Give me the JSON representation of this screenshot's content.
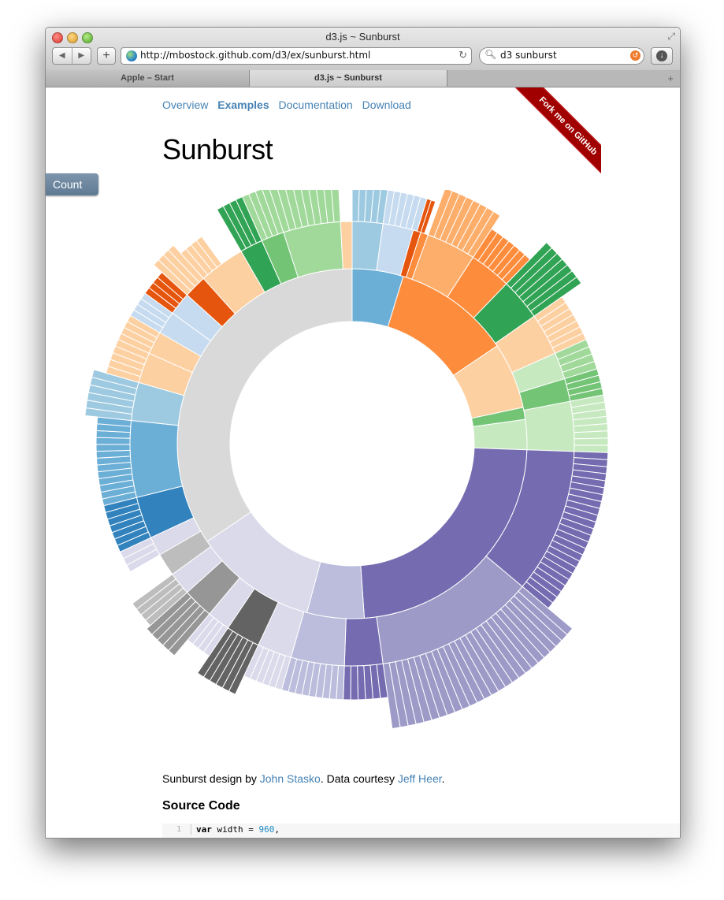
{
  "window": {
    "title": "d3.js ~ Sunburst",
    "url": "http://mbostock.github.com/d3/ex/sunburst.html",
    "search": "d3 sunburst",
    "tabs": [
      {
        "label": "Apple – Start"
      },
      {
        "label": "d3.js ~ Sunburst"
      }
    ]
  },
  "nav": {
    "items": [
      {
        "label": "Overview"
      },
      {
        "label": "Examples"
      },
      {
        "label": "Documentation"
      },
      {
        "label": "Download"
      }
    ],
    "active": "Examples"
  },
  "page": {
    "title": "Sunburst",
    "count_button": "Count",
    "ribbon": "Fork me on GitHub"
  },
  "credit": {
    "prefix": "Sunburst design by ",
    "author1": "John Stasko",
    "middle": ". Data courtesy ",
    "author2": "Jeff Heer",
    "suffix": "."
  },
  "source": {
    "heading": "Source Code",
    "line_number": "1",
    "code_keyword": "var",
    "code_mid": " width = ",
    "code_value": "960",
    "code_end": ","
  },
  "colors": {
    "link": "#4682b4",
    "root_ring": "#d9d9d9",
    "purple": "#756bb1",
    "orange": "#fd8d3c",
    "blue": "#6baed6",
    "green": "#74c476",
    "grey": "#969696"
  }
}
